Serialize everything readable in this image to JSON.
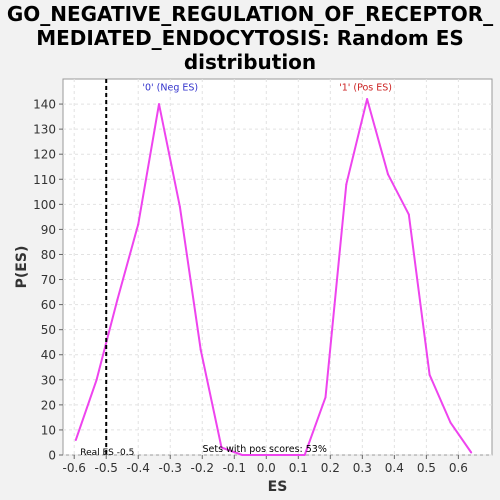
{
  "chart_data": {
    "type": "line",
    "title_lines": [
      "GO_NEGATIVE_REGULATION_OF_RECEPTOR_",
      "MEDIATED_ENDOCYTOSIS: Random ES",
      "distribution"
    ],
    "xlabel": "ES",
    "ylabel": "P(ES)",
    "xlim": [
      -0.635,
      0.705
    ],
    "ylim": [
      0,
      150
    ],
    "xticks": [
      -0.6,
      -0.5,
      -0.4,
      -0.3,
      -0.2,
      -0.1,
      0.0,
      0.1,
      0.2,
      0.3,
      0.4,
      0.5,
      0.6
    ],
    "xtick_labels": [
      "-0.6",
      "-0.5",
      "-0.4",
      "-0.3",
      "-0.2",
      "-0.1",
      "0.0",
      "0.1",
      "0.2",
      "0.3",
      "0.4",
      "0.5",
      "0.6"
    ],
    "yticks": [
      0,
      10,
      20,
      30,
      40,
      50,
      60,
      70,
      80,
      90,
      100,
      110,
      120,
      130,
      140
    ],
    "ytick_labels": [
      "0",
      "10",
      "20",
      "30",
      "40",
      "50",
      "60",
      "70",
      "80",
      "90",
      "100",
      "110",
      "120",
      "130",
      "140"
    ],
    "grid": true,
    "series": [
      {
        "color": "#ee44ee",
        "x": [
          -0.595,
          -0.53,
          -0.465,
          -0.4,
          -0.335,
          -0.27,
          -0.205,
          -0.14,
          -0.075,
          -0.01,
          0.055,
          0.12,
          0.185,
          0.25,
          0.315,
          0.38,
          0.445,
          0.51,
          0.575,
          0.64
        ],
        "y": [
          6,
          30,
          62,
          92,
          140,
          99,
          42,
          3,
          0,
          0,
          0,
          0,
          23,
          108,
          142,
          112,
          96,
          32,
          13,
          1
        ]
      }
    ],
    "real_es": {
      "x": -0.5,
      "label": "Real ES -0.5",
      "color": "#000000"
    },
    "annotations": [
      {
        "text": "'0' (Neg ES)",
        "x": -0.3,
        "y": 145.5,
        "color": "#3333cc"
      },
      {
        "text": "'1' (Pos ES)",
        "x": 0.31,
        "y": 145.5,
        "color": "#cc2222"
      },
      {
        "text": "Sets with pos scores: 53%",
        "x": -0.005,
        "y": 1.2,
        "color": "#000000"
      }
    ]
  }
}
